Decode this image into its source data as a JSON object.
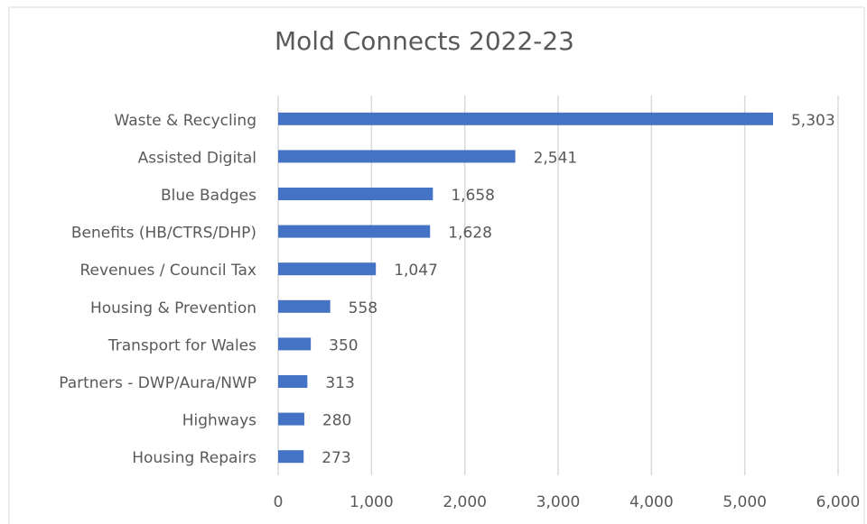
{
  "chart_data": {
    "type": "hbar",
    "title": "Mold Connects 2022-23",
    "categories": [
      "Waste & Recycling",
      "Assisted Digital",
      "Blue Badges",
      "Benefits (HB/CTRS/DHP)",
      "Revenues / Council Tax",
      "Housing & Prevention",
      "Transport for Wales",
      "Partners - DWP/Aura/NWP",
      "Highways",
      "Housing Repairs"
    ],
    "values": [
      5303,
      2541,
      1658,
      1628,
      1047,
      558,
      350,
      313,
      280,
      273
    ],
    "value_labels": [
      "5,303",
      "2,541",
      "1,658",
      "1,628",
      "1,047",
      "558",
      "350",
      "313",
      "280",
      "273"
    ],
    "color": "#4472c4",
    "xlim": [
      0,
      6000
    ],
    "xticks": [
      0,
      {
        "value": 1000,
        "label": "1,000"
      },
      {
        "value": 2000,
        "label": "2,000"
      },
      {
        "value": 3000,
        "label": "3,000"
      },
      {
        "value": 4000,
        "label": "4,000"
      },
      {
        "value": 5000,
        "label": "5,000"
      },
      {
        "value": 6000,
        "label": "6,000"
      }
    ],
    "grid": true
  }
}
